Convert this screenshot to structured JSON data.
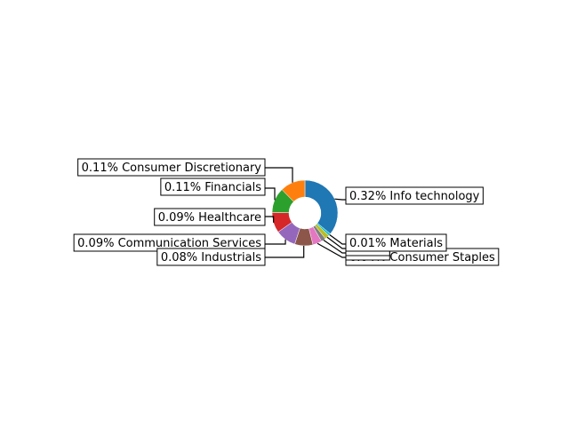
{
  "chart_data": {
    "type": "pie",
    "donut": true,
    "title": "",
    "slices": [
      {
        "label": "0.32% Info technology",
        "value": 0.32,
        "color": "#1f77b4"
      },
      {
        "label": "0.01% Materials",
        "value": 0.01,
        "color": "#17becf"
      },
      {
        "label": "0.02%",
        "value": 0.02,
        "color": "#bcbd22"
      },
      {
        "label": "0.02%",
        "value": 0.02,
        "color": "#7f7f7f"
      },
      {
        "label": "0.04% Consumer Staples",
        "value": 0.04,
        "color": "#e377c2"
      },
      {
        "label": "0.08% Industrials",
        "value": 0.08,
        "color": "#8c564b"
      },
      {
        "label": "0.09% Communication Services",
        "value": 0.09,
        "color": "#9467bd"
      },
      {
        "label": "0.09% Healthcare",
        "value": 0.09,
        "color": "#d62728"
      },
      {
        "label": "0.11% Financials",
        "value": 0.11,
        "color": "#2ca02c"
      },
      {
        "label": "0.11% Consumer Discretionary",
        "value": 0.11,
        "color": "#ff7f0e"
      }
    ]
  }
}
